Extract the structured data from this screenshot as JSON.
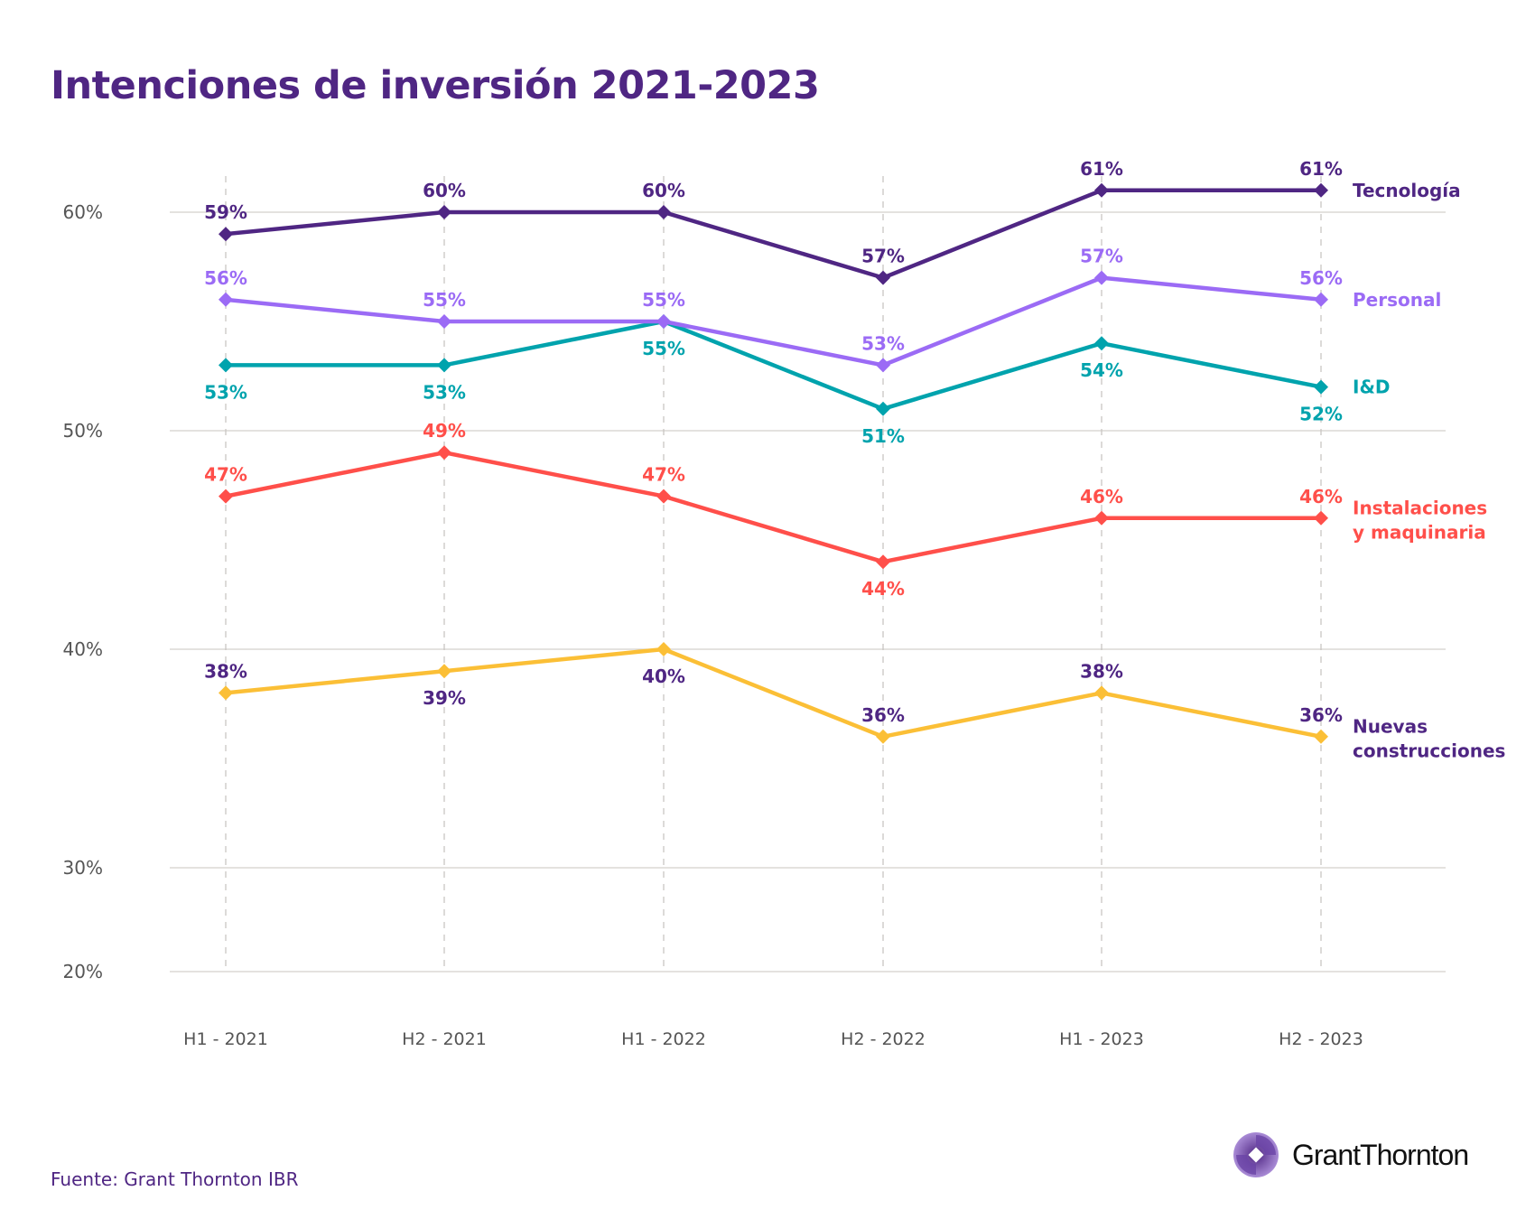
{
  "title": "Intenciones de inversión 2021-2023",
  "source": "Fuente: Grant Thornton IBR",
  "logo": {
    "text": "GrantThornton"
  },
  "chart_data": {
    "type": "line",
    "title": "Intenciones de inversión 2021-2023",
    "xlabel": "",
    "ylabel": "",
    "categories": [
      "H1 - 2021",
      "H2 - 2021",
      "H1 - 2022",
      "H2 - 2022",
      "H1 - 2023",
      "H2 - 2023"
    ],
    "y_ticks": [
      "60%",
      "50%",
      "40%",
      "30%",
      "20%"
    ],
    "y_tick_values": [
      60,
      50,
      40,
      30,
      20
    ],
    "ylim": [
      20,
      62
    ],
    "grid": "horizontal",
    "legend": "right, labels at line ends",
    "series": [
      {
        "name": "Tecnología",
        "values": [
          59,
          60,
          60,
          57,
          61,
          61
        ],
        "color": "#4f2683",
        "label_color": "#4f2683",
        "label_pos": [
          "above",
          "above",
          "above",
          "above",
          "above",
          "above"
        ]
      },
      {
        "name": "Personal",
        "values": [
          56,
          55,
          55,
          53,
          57,
          56
        ],
        "color": "#9b6bf5",
        "label_color": "#9b6bf5",
        "label_pos": [
          "above",
          "above",
          "above",
          "above",
          "above",
          "above"
        ]
      },
      {
        "name": "I&D",
        "values": [
          53,
          53,
          55,
          51,
          54,
          52
        ],
        "color": "#00a3ad",
        "label_color": "#00a3ad",
        "label_pos": [
          "below",
          "below",
          "below",
          "below",
          "below",
          "below"
        ]
      },
      {
        "name": "Instalaciones y maquinaria",
        "name_lines": [
          "Instalaciones",
          "y maquinaria"
        ],
        "values": [
          47,
          49,
          47,
          44,
          46,
          46
        ],
        "color": "#ff4f4a",
        "label_color": "#ff4f4a",
        "label_pos": [
          "above",
          "above",
          "above",
          "below",
          "above",
          "above"
        ]
      },
      {
        "name": "Nuevas construcciones",
        "name_lines": [
          "Nuevas",
          "construcciones"
        ],
        "values": [
          38,
          39,
          40,
          36,
          38,
          36
        ],
        "color": "#fbbf36",
        "label_color": "#4f2683",
        "label_pos": [
          "above",
          "below",
          "below",
          "above",
          "above",
          "above"
        ]
      }
    ]
  }
}
